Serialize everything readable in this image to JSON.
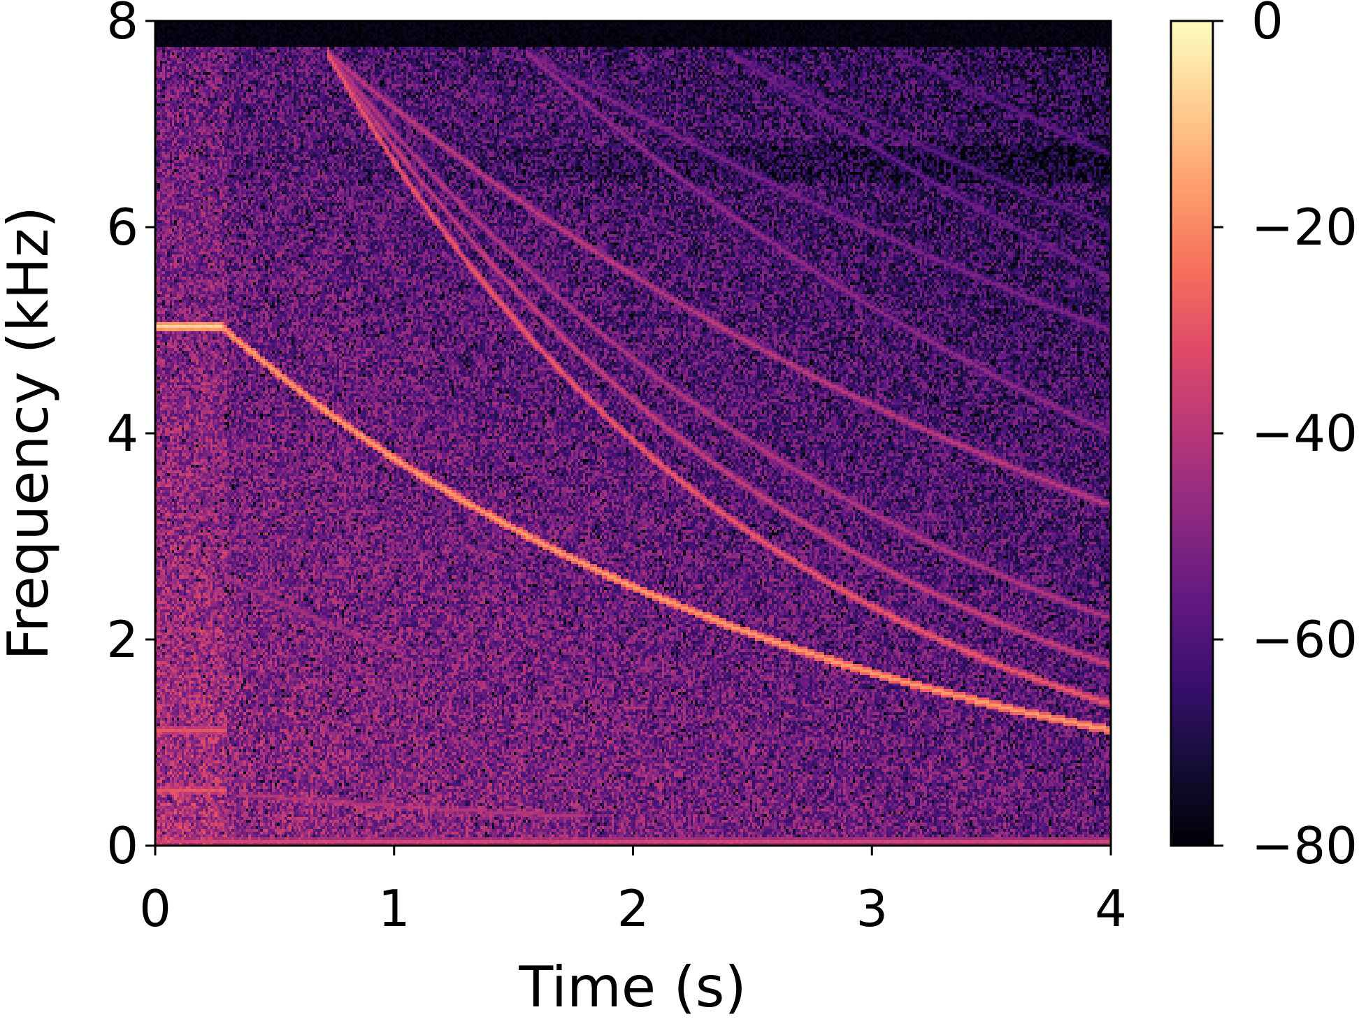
{
  "chart_data": {
    "type": "heatmap",
    "title": "",
    "xlabel": "Time (s)",
    "ylabel": "Frequency (kHz)",
    "xlim": [
      0,
      4
    ],
    "ylim": [
      0,
      8
    ],
    "xticks": [
      "0",
      "1",
      "2",
      "3",
      "4"
    ],
    "yticks": [
      "0",
      "2",
      "4",
      "6",
      "8"
    ],
    "grid": false,
    "colormap": "magma",
    "colorbar": {
      "range": [
        -80,
        0
      ],
      "ticks": [
        "0",
        "−20",
        "−40",
        "−60",
        "−80"
      ],
      "tick_values": [
        0,
        -20,
        -40,
        -60,
        -80
      ]
    },
    "background_noise": {
      "level_low_freq_early": -45,
      "level_high_freq_late": -68,
      "cutoff_khz": 7.75,
      "dark_band_khz": 6.6
    },
    "tones": [
      {
        "t": [
          0.0,
          0.28
        ],
        "f_start_khz": 5.03,
        "f_end_khz": 5.03,
        "db": -8
      }
    ],
    "sweeps": [
      {
        "t_start": 0.28,
        "f_start_khz": 5.03,
        "t_end": 4.0,
        "f_end_khz": 1.12,
        "db": -18
      },
      {
        "t_start": 0.72,
        "f_start_khz": 7.7,
        "t_end": 4.0,
        "f_end_khz": 1.37,
        "db": -30
      },
      {
        "t_start": 0.72,
        "f_start_khz": 7.7,
        "t_end": 4.0,
        "f_end_khz": 1.75,
        "db": -38
      },
      {
        "t_start": 0.72,
        "f_start_khz": 7.7,
        "t_end": 4.0,
        "f_end_khz": 2.2,
        "db": -42
      },
      {
        "t_start": 0.72,
        "f_start_khz": 7.7,
        "t_end": 4.0,
        "f_end_khz": 3.3,
        "db": -40
      },
      {
        "t_start": 1.55,
        "f_start_khz": 7.7,
        "t_end": 4.0,
        "f_end_khz": 4.0,
        "db": -48
      },
      {
        "t_start": 1.55,
        "f_start_khz": 7.7,
        "t_end": 4.0,
        "f_end_khz": 5.0,
        "db": -52
      },
      {
        "t_start": 2.4,
        "f_start_khz": 7.7,
        "t_end": 4.0,
        "f_end_khz": 5.5,
        "db": -55
      },
      {
        "t_start": 2.4,
        "f_start_khz": 7.7,
        "t_end": 4.0,
        "f_end_khz": 6.0,
        "db": -58
      },
      {
        "t_start": 3.1,
        "f_start_khz": 7.7,
        "t_end": 4.0,
        "f_end_khz": 6.7,
        "db": -58
      },
      {
        "t_start": 0.3,
        "f_start_khz": 2.6,
        "t_end": 1.0,
        "f_end_khz": 1.9,
        "db": -45
      },
      {
        "t_start": 0.35,
        "f_start_khz": 0.5,
        "t_end": 1.8,
        "f_end_khz": 0.28,
        "db": -42
      }
    ],
    "steady_lines": [
      {
        "f_khz": 1.12,
        "t": [
          0.0,
          0.3
        ],
        "db": -30
      },
      {
        "f_khz": 0.55,
        "t": [
          0.0,
          0.3
        ],
        "db": -30
      },
      {
        "f_khz": 0.05,
        "t": [
          0.0,
          4.0
        ],
        "db": -35
      }
    ]
  }
}
